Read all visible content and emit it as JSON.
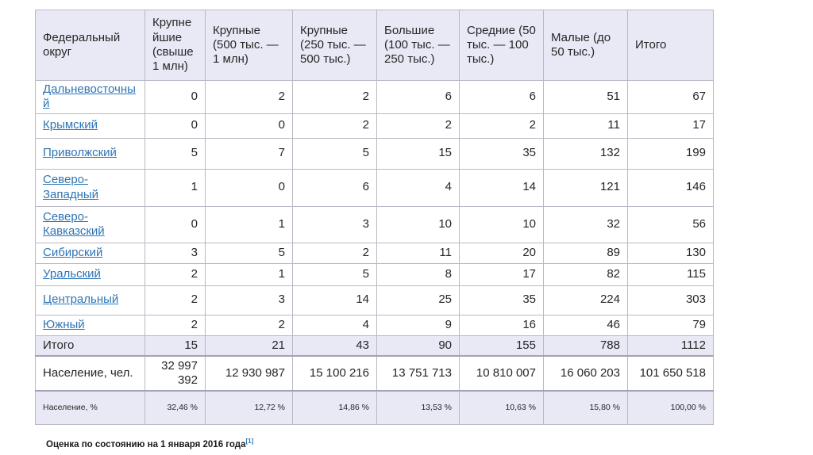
{
  "table": {
    "columns": [
      "Федеральный округ",
      "Крупнейшие (свыше 1 млн)",
      "Крупные (500 тыс. — 1 млн)",
      "Крупные (250 тыс. — 500 тыс.)",
      "Большие (100 тыс. — 250 тыс.)",
      "Средние (50 тыс. — 100 тыс.)",
      "Малые (до 50 тыс.)",
      "Итого"
    ],
    "districts": [
      {
        "name": "Дальневосточный",
        "values": [
          "0",
          "2",
          "2",
          "6",
          "6",
          "51",
          "67"
        ]
      },
      {
        "name": "Крымский",
        "values": [
          "0",
          "0",
          "2",
          "2",
          "2",
          "11",
          "17"
        ]
      },
      {
        "name": "Приволжский",
        "values": [
          "5",
          "7",
          "5",
          "15",
          "35",
          "132",
          "199"
        ]
      },
      {
        "name": "Северо-Западный",
        "values": [
          "1",
          "0",
          "6",
          "4",
          "14",
          "121",
          "146"
        ]
      },
      {
        "name": "Северо-Кавказский",
        "values": [
          "0",
          "1",
          "3",
          "10",
          "10",
          "32",
          "56"
        ]
      },
      {
        "name": "Сибирский",
        "values": [
          "3",
          "5",
          "2",
          "11",
          "20",
          "89",
          "130"
        ]
      },
      {
        "name": "Уральский",
        "values": [
          "2",
          "1",
          "5",
          "8",
          "17",
          "82",
          "115"
        ]
      },
      {
        "name": "Центральный",
        "values": [
          "2",
          "3",
          "14",
          "25",
          "35",
          "224",
          "303"
        ]
      },
      {
        "name": "Южный",
        "values": [
          "2",
          "2",
          "4",
          "9",
          "16",
          "46",
          "79"
        ]
      }
    ],
    "total_row": {
      "label": "Итого",
      "values": [
        "15",
        "21",
        "43",
        "90",
        "155",
        "788",
        "1112"
      ]
    },
    "population_row": {
      "label": "Население, чел.",
      "values": [
        "32 997 392",
        "12 930 987",
        "15 100 216",
        "13 751 713",
        "10 810 007",
        "16 060 203",
        "101 650 518"
      ]
    },
    "percent_row": {
      "label": "Население, %",
      "values": [
        "32,46 %",
        "12,72 %",
        "14,86 %",
        "13,53 %",
        "10,63 %",
        "15,80 %",
        "100,00 %"
      ]
    }
  },
  "footer": {
    "text": "Оценка по состоянию на 1 января 2016 года",
    "reference": "[1]"
  },
  "colors": {
    "header_bg": "#e9e9f6",
    "shaded_row_bg": "#e9e9f6",
    "border": "#b9b9c6",
    "link": "#2e75b6",
    "text": "#262626"
  }
}
